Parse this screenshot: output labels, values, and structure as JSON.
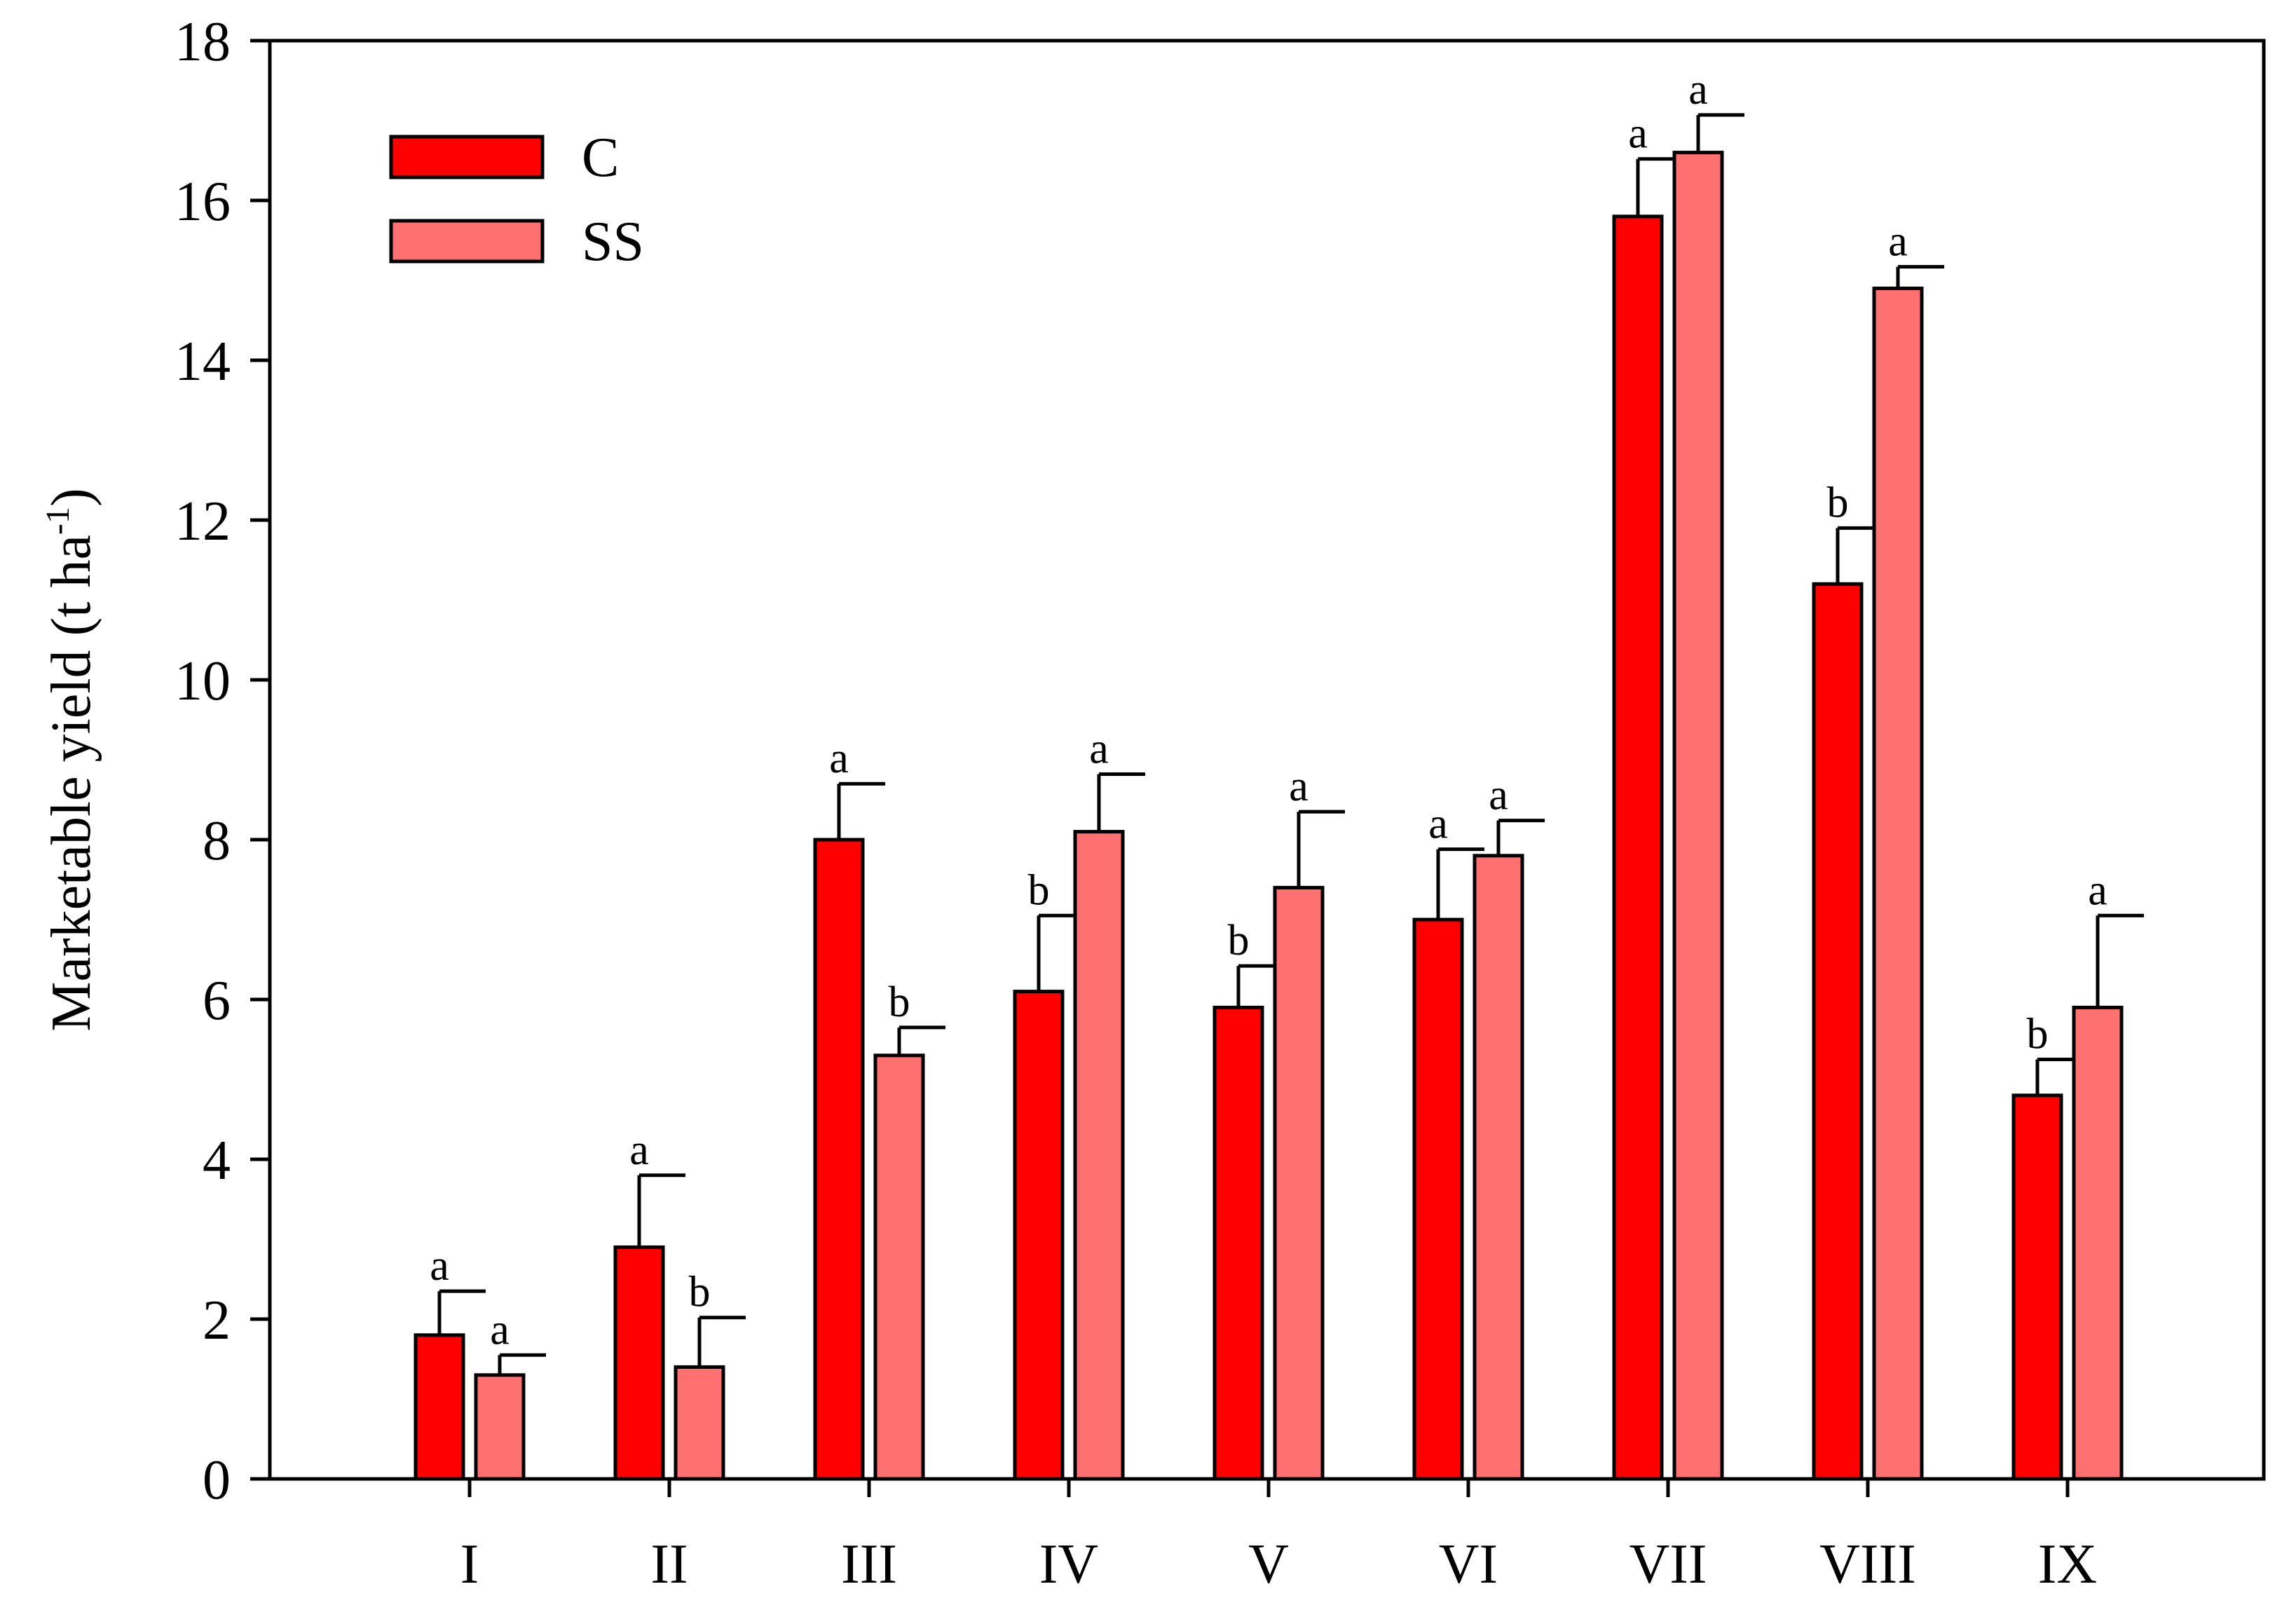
{
  "chart_data": {
    "type": "bar",
    "title": "",
    "xlabel": "",
    "ylabel": "Marketable yield (t ha",
    "ylabel_superscript": "-1",
    "ylabel_close": ")",
    "ylim": [
      0,
      18
    ],
    "yticks": [
      0,
      2,
      4,
      6,
      8,
      10,
      12,
      14,
      16,
      18
    ],
    "ytick_labels": [
      "0",
      "2",
      "4",
      "6",
      "8",
      "10",
      "12",
      "14",
      "16",
      "18"
    ],
    "grid": false,
    "legend_position": "top-left",
    "categories": [
      "I",
      "II",
      "III",
      "IV",
      "V",
      "VI",
      "VII",
      "VIII",
      "IX"
    ],
    "series": [
      {
        "name": "C",
        "color": "#ff0000",
        "values": [
          1.8,
          2.9,
          8.0,
          6.1,
          5.9,
          7.0,
          15.8,
          11.2,
          4.8
        ],
        "errors": [
          0.55,
          0.9,
          0.7,
          0.95,
          0.52,
          0.88,
          0.72,
          0.7,
          0.45
        ],
        "significance": [
          "a",
          "a",
          "a",
          "b",
          "b",
          "a",
          "a",
          "b",
          "b"
        ]
      },
      {
        "name": "SS",
        "color": "#ff7070",
        "values": [
          1.3,
          1.4,
          5.3,
          8.1,
          7.4,
          7.8,
          16.6,
          14.9,
          5.9
        ],
        "errors": [
          0.25,
          0.62,
          0.35,
          0.72,
          0.95,
          0.44,
          0.47,
          0.27,
          1.15
        ],
        "significance": [
          "a",
          "b",
          "b",
          "a",
          "a",
          "a",
          "a",
          "a",
          "a"
        ]
      }
    ]
  }
}
